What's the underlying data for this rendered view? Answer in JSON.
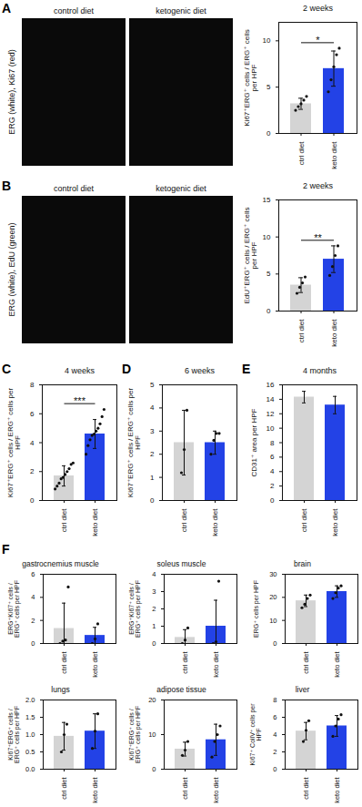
{
  "chart_data": [
    {
      "type": "bar",
      "panel": "A",
      "title": "2 weeks",
      "micrographs": {
        "channels": "ERG (white), Ki67 (red)",
        "labels": [
          "control diet",
          "ketogenic diet"
        ]
      },
      "y_label": "Ki67⁺ERG⁺ cells / ERG⁺ cells per HPF",
      "categories": [
        "ctrl diet",
        "keto diet"
      ],
      "values": [
        3.2,
        7.0
      ],
      "errors": [
        0.6,
        1.9
      ],
      "points": [
        [
          2.5,
          2.9,
          3.2,
          3.6,
          4.0
        ],
        [
          4.5,
          5.8,
          7.2,
          8.5,
          9.2
        ]
      ],
      "colors": [
        "#d4d4d4",
        "#2342e6"
      ],
      "ylim": [
        0,
        12
      ],
      "yticks": [
        0,
        5,
        10
      ],
      "annotation": "*"
    },
    {
      "type": "bar",
      "panel": "B",
      "title": "2 weeks",
      "micrographs": {
        "channels": "ERG (white), EdU (green)",
        "labels": [
          "control diet",
          "ketogenic diet"
        ]
      },
      "y_label": "EdU⁺ERG⁺ cells / ERG⁺ cells per HPF",
      "categories": [
        "ctrl diet",
        "keto diet"
      ],
      "values": [
        3.5,
        7.0
      ],
      "errors": [
        1.0,
        1.8
      ],
      "points": [
        [
          2.4,
          3.2,
          3.8,
          4.6
        ],
        [
          4.8,
          6.0,
          7.5,
          8.8
        ]
      ],
      "colors": [
        "#d4d4d4",
        "#2342e6"
      ],
      "ylim": [
        0,
        15
      ],
      "yticks": [
        0,
        5,
        10,
        15
      ],
      "annotation": "**"
    },
    {
      "type": "bar",
      "panel": "C",
      "title": "4 weeks",
      "y_label": "Ki67⁺ERG⁺ cells / ERG⁺ cells per HPF",
      "categories": [
        "ctrl diet",
        "keto diet"
      ],
      "values": [
        1.7,
        4.6
      ],
      "errors": [
        0.7,
        1.0
      ],
      "points": [
        [
          0.8,
          1.0,
          1.2,
          1.5,
          1.6,
          1.8,
          2.0,
          2.2,
          2.5,
          2.6
        ],
        [
          3.2,
          3.8,
          4.2,
          4.5,
          4.6,
          4.8,
          5.0,
          5.3,
          5.8,
          6.3
        ]
      ],
      "colors": [
        "#d4d4d4",
        "#2342e6"
      ],
      "ylim": [
        0,
        8
      ],
      "yticks": [
        0,
        2,
        4,
        6,
        8
      ],
      "annotation": "***"
    },
    {
      "type": "bar",
      "panel": "D",
      "title": "6 weeks",
      "y_label": "Ki67⁺ERG⁺ cells / ERG⁺ cells per HPF",
      "categories": [
        "ctrl diet",
        "keto diet"
      ],
      "values": [
        2.5,
        2.5
      ],
      "errors": [
        1.4,
        0.5
      ],
      "points": [
        [
          1.2,
          2.2,
          3.9
        ],
        [
          2.0,
          2.6,
          2.9,
          2.9
        ]
      ],
      "colors": [
        "#d4d4d4",
        "#2342e6"
      ],
      "ylim": [
        0,
        5
      ],
      "yticks": [
        0,
        1,
        2,
        3,
        4,
        5
      ]
    },
    {
      "type": "bar",
      "panel": "E",
      "title": "4 months",
      "y_label": "CD31⁺ area per HPF",
      "categories": [
        "ctrl diet",
        "keto diet"
      ],
      "values": [
        14.3,
        13.2
      ],
      "errors": [
        0.8,
        1.2
      ],
      "colors": [
        "#d4d4d4",
        "#2342e6"
      ],
      "ylim": [
        0,
        16
      ],
      "yticks": [
        0,
        2,
        4,
        6,
        8,
        10,
        12,
        14,
        16
      ]
    },
    {
      "type": "bar",
      "panel": "F",
      "title": "gastrocnemius muscle",
      "y_label": "ERG⁺Ki67⁺ cells / ERG⁺ cells per HPF",
      "categories": [
        "ctrl diet",
        "keto diet"
      ],
      "values": [
        1.3,
        0.7
      ],
      "errors": [
        2.2,
        0.7
      ],
      "points": [
        [
          0.0,
          0.2,
          0.3,
          4.9
        ],
        [
          0.0,
          0.4,
          1.7
        ]
      ],
      "colors": [
        "#d4d4d4",
        "#2342e6"
      ],
      "ylim": [
        0,
        6
      ],
      "yticks": [
        0,
        2,
        4,
        6
      ]
    },
    {
      "type": "bar",
      "title": "soleus muscle",
      "y_label": "ERG⁺Ki67⁺ cells / ERG⁺ cells per HPF",
      "categories": [
        "ctrl diet",
        "keto diet"
      ],
      "values": [
        0.35,
        1.0
      ],
      "errors": [
        0.45,
        1.5
      ],
      "points": [
        [
          0.0,
          0.2,
          0.9
        ],
        [
          0.0,
          0.1,
          3.6
        ]
      ],
      "colors": [
        "#d4d4d4",
        "#2342e6"
      ],
      "ylim": [
        0,
        4
      ],
      "yticks": [
        0,
        1,
        2,
        3,
        4
      ]
    },
    {
      "type": "bar",
      "title": "brain",
      "y_label": "ERG⁺ cells per HPF",
      "categories": [
        "ctrl diet",
        "keto diet"
      ],
      "values": [
        18.5,
        22.5
      ],
      "errors": [
        2.5,
        2.5
      ],
      "points": [
        [
          15.5,
          17.0,
          19.5,
          21.0
        ],
        [
          19.5,
          22.0,
          24.0,
          25.0
        ]
      ],
      "colors": [
        "#d4d4d4",
        "#2342e6"
      ],
      "ylim": [
        0,
        30
      ],
      "yticks": [
        0,
        10,
        20,
        30
      ]
    },
    {
      "type": "bar",
      "title": "lungs",
      "y_label": "Ki67⁺ERG⁺ cells / ERG⁺ cells per HPF",
      "categories": [
        "ctrl diet",
        "keto diet"
      ],
      "values": [
        0.95,
        1.1
      ],
      "errors": [
        0.4,
        0.5
      ],
      "points": [
        [
          0.5,
          1.0,
          1.3
        ],
        [
          0.6,
          1.1,
          1.6
        ]
      ],
      "colors": [
        "#d4d4d4",
        "#2342e6"
      ],
      "ylim": [
        0,
        2
      ],
      "yticks": [
        {
          "value": 0,
          "label": "0.0"
        },
        {
          "value": 0.5,
          "label": "0.5"
        },
        {
          "value": 1,
          "label": "1.0"
        },
        {
          "value": 1.5,
          "label": "1.5"
        },
        {
          "value": 2,
          "label": "2.0"
        }
      ]
    },
    {
      "type": "bar",
      "title": "adipose tissue",
      "y_label": "Ki67⁺ERG⁺ cells / ERG⁺ cells per HPF",
      "categories": [
        "ctrl diet",
        "keto diet"
      ],
      "values": [
        5.8,
        8.5
      ],
      "errors": [
        2.0,
        4.5
      ],
      "points": [
        [
          4.0,
          5.5,
          8.0
        ],
        [
          3.5,
          8.0,
          10.0,
          12.5
        ]
      ],
      "colors": [
        "#d4d4d4",
        "#2342e6"
      ],
      "ylim": [
        0,
        20
      ],
      "yticks": [
        0,
        10,
        20
      ]
    },
    {
      "type": "bar",
      "title": "liver",
      "y_label": "Ki67⁺ CollV⁺ cells per HPF",
      "categories": [
        "ctrl diet",
        "keto diet"
      ],
      "values": [
        4.4,
        5.0
      ],
      "errors": [
        1.0,
        1.2
      ],
      "points": [
        [
          3.2,
          4.5,
          5.6
        ],
        [
          3.8,
          5.0,
          5.8,
          6.3
        ]
      ],
      "colors": [
        "#d4d4d4",
        "#2342e6"
      ],
      "ylim": [
        0,
        8
      ],
      "yticks": [
        0,
        2,
        4,
        6,
        8
      ]
    }
  ]
}
